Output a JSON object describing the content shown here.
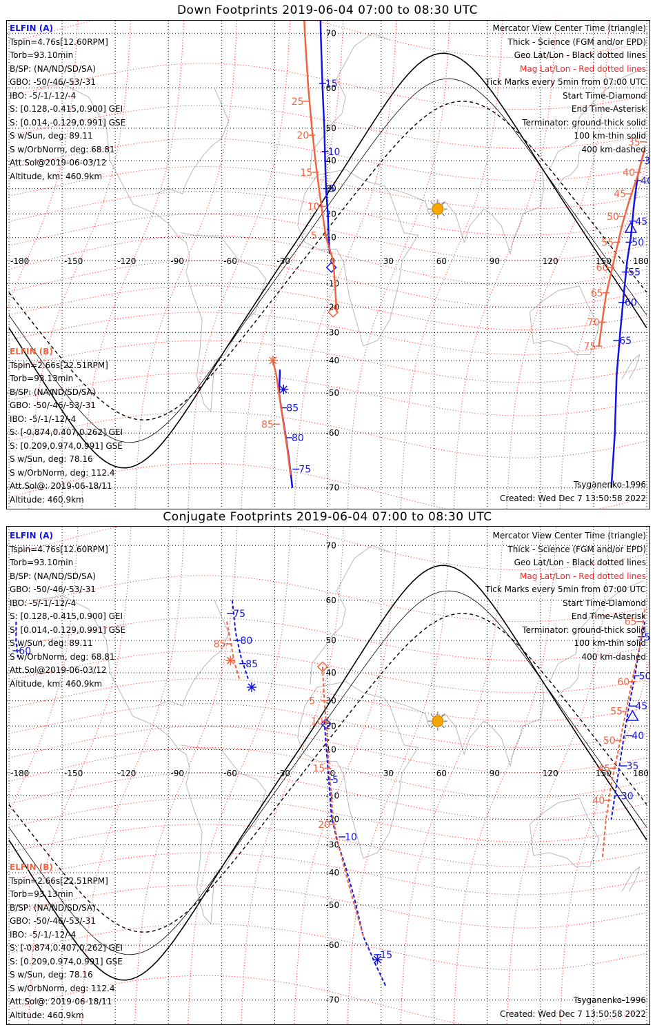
{
  "colors": {
    "elfin_a": "#1414e0",
    "elfin_b": "#f26440",
    "mag_grid": "#ff2020",
    "geo_grid": "#000000",
    "coast": "#b8b8b8",
    "sun": "#f7a600"
  },
  "map": {
    "lon_labels": [
      "-180",
      "-150",
      "-120",
      "-90",
      "-60",
      "-30",
      "0",
      "30",
      "60",
      "90",
      "120",
      "150",
      "180"
    ],
    "lat_labels": [
      "70",
      "60",
      "50",
      "40",
      "30",
      "20",
      "10",
      "0",
      "-10",
      "-20",
      "-30",
      "-40",
      "-50",
      "-60",
      "-70"
    ]
  },
  "legend": {
    "line1": "Mercator View Center Time (triangle)",
    "line2": "Thick - Science (FGM and/or EPD)",
    "line3": "Geo Lat/Lon - Black dotted lines",
    "line4": "Mag Lat/Lon - Red dotted lines",
    "line5": "Tick Marks every 5min from 07:00 UTC",
    "line6": "Start Time-Diamond",
    "line7": "End Time-Asterisk",
    "line8": "Terminator: ground-thick solid",
    "line9": "100 km-thin solid",
    "line10": "400 km-dashed"
  },
  "elfin_a": {
    "header": "ELFIN (A)",
    "tspin": "Tspin=4.76s[12.60RPM]",
    "torb": "Torb=93.10min",
    "bsp": "B/SP: (NA/ND/SD/SA)",
    "gbo": "GBO: -50/-46/-53/-31",
    "ibo": "IBO: -5/-1/-12/-4",
    "s_gei": "S: [0.128,-0.415,0.900] GEI",
    "s_gse": "S: [0.014,-0.129,0.991] GSE",
    "s_sun": "S w/Sun, deg: 89.11",
    "s_orb": "S w/OrbNorm, deg: 68.81",
    "attsol": "Att.Sol@2019-06-03/12",
    "altitude": "Altitude, km: 460.9km"
  },
  "elfin_b": {
    "header": "ELFIN (B)",
    "tspin": "Tspin=2.66s[22.51RPM]",
    "torb": "Torb=93.13min",
    "bsp": "B/SP: (NA/ND/SD/SA)",
    "gbo": "GBO: -50/-46/-53/-31",
    "ibo": "IBO: -5/-1/-12/-4",
    "s_gei": "S: [-0.874,0.407,0.262] GEI",
    "s_gse": "S: [0.209,0.974,0.991] GSE",
    "s_sun": "S w/Sun, deg: 78.16",
    "s_orb": "S w/OrbNorm, deg: 112.4",
    "attsol": "Att.Sol@: 2019-06-18/11",
    "altitude": "Altitude: 460.9km"
  },
  "footer": {
    "model": "Tsyganenko-1996",
    "created": "Created: Wed Dec  7 13:50:58 2022"
  },
  "panels": [
    {
      "title": "Down Footprints 2019-06-04 07:00 to 08:30 UTC",
      "tracks": [
        {
          "sat": "A",
          "pass": "west",
          "points": [
            [
              -5,
              80
            ],
            [
              -4,
              70
            ],
            [
              -3,
              60
            ],
            [
              -2,
              50
            ],
            [
              -1.5,
              40
            ],
            [
              -1,
              30
            ],
            [
              0,
              20
            ],
            [
              0.5,
              10
            ],
            [
              1,
              3
            ]
          ],
          "ticks": [
            {
              "label": "15",
              "lon": -3,
              "lat": 61
            },
            {
              "label": "10",
              "lon": -1.5,
              "lat": 43
            },
            {
              "label": "5",
              "lon": -0.8,
              "lat": 30
            }
          ],
          "start": [
            2,
            -3
          ]
        },
        {
          "sat": "A",
          "pass": "east",
          "points": [
            [
              178,
              42
            ],
            [
              175,
              35
            ],
            [
              173,
              25
            ],
            [
              171,
              10
            ],
            [
              169,
              0
            ],
            [
              167,
              -15
            ],
            [
              165,
              -30
            ],
            [
              163,
              -45
            ],
            [
              162,
              -60
            ],
            [
              160,
              -70
            ]
          ],
          "ticks": [
            {
              "label": "35",
              "lon": 177,
              "lat": 40
            },
            {
              "label": "40",
              "lon": 175,
              "lat": 33
            },
            {
              "label": "45",
              "lon": 172,
              "lat": 17
            },
            {
              "label": "50",
              "lon": 170,
              "lat": 8
            },
            {
              "label": "55",
              "lon": 168,
              "lat": -5
            },
            {
              "label": "60",
              "lon": 166,
              "lat": -18
            },
            {
              "label": "65",
              "lon": 163,
              "lat": -33
            }
          ],
          "center": [
            171,
            14
          ]
        },
        {
          "sat": "A",
          "pass": "atlantic",
          "points": [
            [
              -27,
              -43
            ],
            [
              -27.5,
              -50
            ],
            [
              -26,
              -55
            ],
            [
              -24,
              -60
            ],
            [
              -22,
              -65
            ],
            [
              -20,
              -70
            ]
          ],
          "ticks": [
            {
              "label": "85",
              "lon": -25,
              "lat": -54
            },
            {
              "label": "80",
              "lon": -22,
              "lat": -61
            },
            {
              "label": "75",
              "lon": -18,
              "lat": -67
            }
          ],
          "end": [
            -25,
            -49
          ]
        },
        {
          "sat": "B",
          "pass": "west",
          "points": [
            [
              -15,
              80
            ],
            [
              -13,
              70
            ],
            [
              -11,
              60
            ],
            [
              -9,
              50
            ],
            [
              -7,
              40
            ],
            [
              -5,
              30
            ],
            [
              -3,
              20
            ],
            [
              -1,
              10
            ],
            [
              3,
              0
            ],
            [
              4,
              -10
            ],
            [
              5,
              -22
            ]
          ],
          "ticks": [
            {
              "label": "25",
              "lon": -12,
              "lat": 57
            },
            {
              "label": "20",
              "lon": -9,
              "lat": 48
            },
            {
              "label": "15",
              "lon": -7,
              "lat": 36
            },
            {
              "label": "10",
              "lon": -3,
              "lat": 23
            },
            {
              "label": "5",
              "lon": -1,
              "lat": 11
            }
          ],
          "start": [
            3,
            -22
          ]
        },
        {
          "sat": "B",
          "pass": "east",
          "points": [
            [
              179,
              44
            ],
            [
              175,
              35
            ],
            [
              170,
              25
            ],
            [
              166,
              15
            ],
            [
              163,
              5
            ],
            [
              160,
              -5
            ],
            [
              157,
              -15
            ],
            [
              155,
              -25
            ],
            [
              153,
              -35
            ]
          ],
          "ticks": [
            {
              "label": "35",
              "lon": 178,
              "lat": 46
            },
            {
              "label": "40",
              "lon": 175,
              "lat": 36
            },
            {
              "label": "45",
              "lon": 170,
              "lat": 28
            },
            {
              "label": "50",
              "lon": 166,
              "lat": 19
            },
            {
              "label": "55",
              "lon": 163,
              "lat": 8
            },
            {
              "label": "60",
              "lon": 160,
              "lat": -3
            },
            {
              "label": "65",
              "lon": 157,
              "lat": -14
            },
            {
              "label": "70",
              "lon": 155,
              "lat": -26
            },
            {
              "label": "75",
              "lon": 153,
              "lat": -35
            }
          ]
        },
        {
          "sat": "B",
          "pass": "atlantic",
          "points": [
            [
              -31,
              -40
            ],
            [
              -29,
              -45
            ],
            [
              -27,
              -52
            ],
            [
              -25,
              -58
            ],
            [
              -23,
              -63
            ],
            [
              -21,
              -68
            ]
          ],
          "ticks": [
            {
              "label": "85",
              "lon": -29,
              "lat": -58
            }
          ],
          "end": [
            -31,
            -40
          ]
        }
      ]
    },
    {
      "title": "Conjugate Footprints 2019-06-04 07:00 to 08:30 UTC",
      "tracks": [
        {
          "sat": "A",
          "pass": "nw",
          "points": [
            [
              -176,
              55
            ],
            [
              -176,
              50
            ],
            [
              -175,
              45
            ]
          ],
          "ticks": [
            {
              "label": "60",
              "lon": -176,
              "lat": 47
            }
          ]
        },
        {
          "sat": "A",
          "pass": "northatl",
          "points": [
            [
              -54,
              60
            ],
            [
              -52,
              52
            ],
            [
              -49,
              45
            ],
            [
              -45,
              38
            ]
          ],
          "ticks": [
            {
              "label": "75",
              "lon": -55,
              "lat": 57
            },
            {
              "label": "80",
              "lon": -51,
              "lat": 50
            },
            {
              "label": "85",
              "lon": -48,
              "lat": 43
            }
          ],
          "end": [
            -43,
            35
          ]
        },
        {
          "sat": "A",
          "pass": "equator",
          "points": [
            [
              -2,
              22
            ],
            [
              -1,
              12
            ],
            [
              0,
              2
            ],
            [
              1,
              -8
            ],
            [
              2,
              -18
            ],
            [
              5,
              -28
            ],
            [
              10,
              -38
            ],
            [
              15,
              -48
            ],
            [
              20,
              -58
            ],
            [
              27,
              -64
            ],
            [
              33,
              -68
            ]
          ],
          "ticks": [
            {
              "label": "5",
              "lon": 1,
              "lat": -3
            },
            {
              "label": "10",
              "lon": 8,
              "lat": -27
            },
            {
              "label": "15",
              "lon": 28,
              "lat": -62
            }
          ],
          "start": [
            -1,
            21
          ],
          "end": [
            28,
            -63
          ]
        },
        {
          "sat": "A",
          "pass": "east",
          "points": [
            [
              179,
              55
            ],
            [
              176,
              48
            ],
            [
              173,
              38
            ],
            [
              170,
              28
            ],
            [
              167,
              15
            ],
            [
              164,
              0
            ],
            [
              160,
              -20
            ]
          ],
          "ticks": [
            {
              "label": "55",
              "lon": 177,
              "lat": 51
            },
            {
              "label": "50",
              "lon": 174,
              "lat": 39
            },
            {
              "label": "45",
              "lon": 172,
              "lat": 28
            },
            {
              "label": "40",
              "lon": 170,
              "lat": 16
            },
            {
              "label": "35",
              "lon": 167,
              "lat": 3
            },
            {
              "label": "30",
              "lon": 164,
              "lat": -10
            }
          ],
          "center": [
            172,
            24
          ]
        },
        {
          "sat": "B",
          "pass": "northatl",
          "points": [
            [
              -57,
              55
            ],
            [
              -55,
              50
            ],
            [
              -53,
              44
            ],
            [
              -50,
              38
            ]
          ],
          "ticks": [
            {
              "label": "85",
              "lon": -56,
              "lat": 49
            }
          ],
          "end": [
            -55,
            44
          ]
        },
        {
          "sat": "B",
          "pass": "equator",
          "points": [
            [
              -3,
              42
            ],
            [
              -2,
              30
            ],
            [
              -1,
              22
            ],
            [
              0,
              10
            ],
            [
              1,
              0
            ],
            [
              2,
              -10
            ],
            [
              3,
              -20
            ],
            [
              6,
              -30
            ],
            [
              10,
              -40
            ],
            [
              15,
              -50
            ],
            [
              20,
              -58
            ]
          ],
          "ticks": [
            {
              "label": "5",
              "lon": -2,
              "lat": 30
            },
            {
              "label": "10",
              "lon": -1,
              "lat": 22
            },
            {
              "label": "15",
              "lon": 0,
              "lat": 2
            },
            {
              "label": "20",
              "lon": 3,
              "lat": -22
            }
          ],
          "start": [
            -3,
            42
          ]
        },
        {
          "sat": "B",
          "pass": "east",
          "points": [
            [
              179,
              58
            ],
            [
              176,
              48
            ],
            [
              172,
              38
            ],
            [
              168,
              25
            ],
            [
              164,
              10
            ],
            [
              160,
              -5
            ],
            [
              157,
              -20
            ],
            [
              155,
              -35
            ]
          ],
          "ticks": [
            {
              "label": "65",
              "lon": 176,
              "lat": 55
            },
            {
              "label": "60",
              "lon": 172,
              "lat": 37
            },
            {
              "label": "55",
              "lon": 168,
              "lat": 26
            },
            {
              "label": "50",
              "lon": 164,
              "lat": 14
            },
            {
              "label": "45",
              "lon": 161,
              "lat": 2
            },
            {
              "label": "40",
              "lon": 158,
              "lat": -12
            }
          ]
        }
      ]
    }
  ]
}
